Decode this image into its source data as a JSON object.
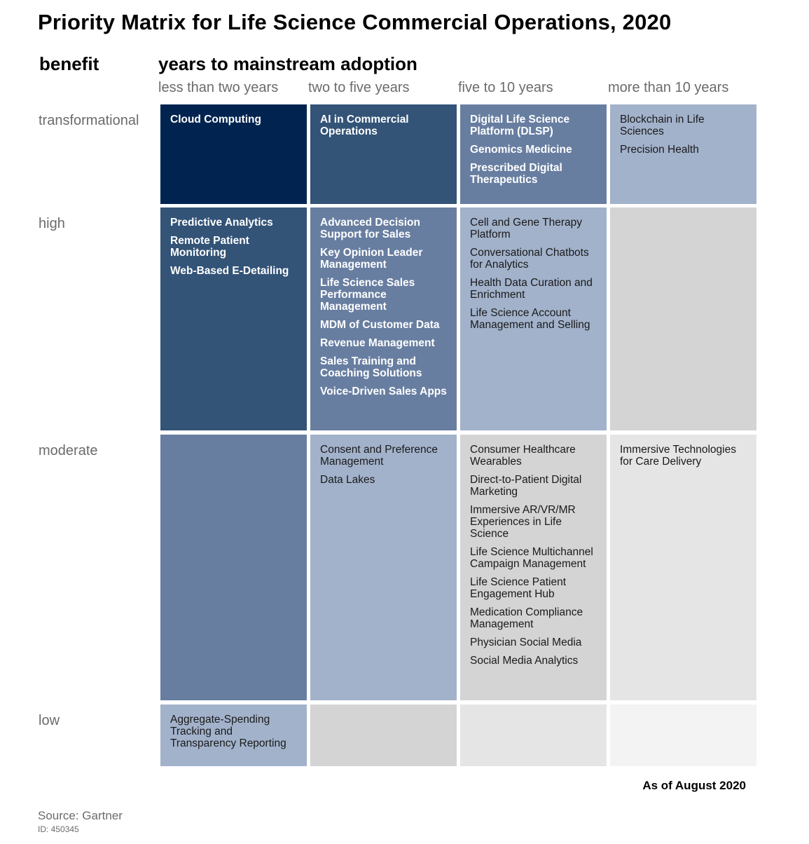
{
  "title": "Priority Matrix for Life Science Commercial Operations, 2020",
  "benefit_label": "benefit",
  "years_label": "years to mainstream adoption",
  "columns": [
    "less than two years",
    "two to five years",
    "five to 10 years",
    "more than 10 years"
  ],
  "rows": [
    "transformational",
    "high",
    "moderate",
    "low"
  ],
  "cells": [
    [
      {
        "color": "#00234f",
        "style": "dark",
        "items": [
          "Cloud Computing"
        ]
      },
      {
        "color": "#335377",
        "style": "dark",
        "items": [
          "AI in Commercial Operations"
        ]
      },
      {
        "color": "#687ea1",
        "style": "dark",
        "items": [
          "Digital Life Science Platform (DLSP)",
          "Genomics Medicine",
          "Prescribed Digital Therapeutics"
        ]
      },
      {
        "color": "#a2b2cb",
        "style": "light",
        "items": [
          "Blockchain in Life Sciences",
          "Precision Health"
        ]
      }
    ],
    [
      {
        "color": "#335377",
        "style": "dark",
        "items": [
          "Predictive Analytics",
          "Remote Patient Monitoring",
          "Web-Based E-Detailing"
        ]
      },
      {
        "color": "#687ea1",
        "style": "dark",
        "items": [
          "Advanced Decision Support for Sales",
          "Key Opinion Leader Management",
          "Life Science Sales Performance Management",
          "MDM of Customer Data",
          "Revenue Management",
          "Sales Training and Coaching Solutions",
          "Voice-Driven Sales Apps"
        ]
      },
      {
        "color": "#a2b2cb",
        "style": "light",
        "items": [
          "Cell and Gene Therapy Platform",
          "Conversational Chatbots for Analytics",
          "Health Data Curation and Enrichment",
          "Life Science Account Management and Selling"
        ]
      },
      {
        "color": "#d4d4d4",
        "style": "light",
        "items": []
      }
    ],
    [
      {
        "color": "#687ea1",
        "style": "dark",
        "items": []
      },
      {
        "color": "#a2b2cb",
        "style": "light",
        "items": [
          "Consent and Preference Management",
          "Data Lakes"
        ]
      },
      {
        "color": "#d4d4d4",
        "style": "light",
        "items": [
          "Consumer Healthcare Wearables",
          "Direct-to-Patient Digital Marketing",
          "Immersive AR/VR/MR Experiences in Life Science",
          "Life Science Multichannel Campaign Management",
          "Life Science Patient Engagement Hub",
          "Medication Compliance Management",
          "Physician Social Media",
          "Social Media Analytics"
        ]
      },
      {
        "color": "#e5e5e5",
        "style": "light",
        "items": [
          "Immersive Technologies for Care Delivery"
        ]
      }
    ],
    [
      {
        "color": "#a2b2cb",
        "style": "light",
        "items": [
          "Aggregate-Spending Tracking and Transparency Reporting"
        ]
      },
      {
        "color": "#d4d4d4",
        "style": "light",
        "items": []
      },
      {
        "color": "#e5e5e5",
        "style": "light",
        "items": []
      },
      {
        "color": "#f3f3f3",
        "style": "light",
        "items": []
      }
    ]
  ],
  "as_of": "As of August 2020",
  "source": "Source: Gartner",
  "doc_id": "ID: 450345"
}
